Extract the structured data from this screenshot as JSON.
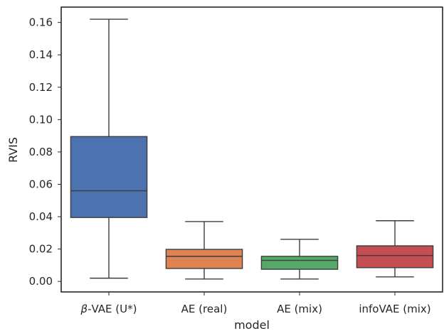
{
  "chart_data": {
    "type": "box",
    "xlabel": "model",
    "ylabel": "RVIS",
    "ylim": [
      -0.0065,
      0.1695
    ],
    "yticks": [
      "0.00",
      "0.02",
      "0.04",
      "0.06",
      "0.08",
      "0.10",
      "0.12",
      "0.14",
      "0.16"
    ],
    "grid": false,
    "series": [
      {
        "label_prefix": "β",
        "label": "-VAE (U*)",
        "color": "#4c72b0",
        "whisker_low": 0.002,
        "q1": 0.0395,
        "median": 0.056,
        "q3": 0.0895,
        "whisker_high": 0.162
      },
      {
        "label_prefix": "",
        "label": "AE (real)",
        "color": "#dd8452",
        "whisker_low": 0.0015,
        "q1": 0.008,
        "median": 0.0155,
        "q3": 0.0198,
        "whisker_high": 0.037
      },
      {
        "label_prefix": "",
        "label": "AE (mix)",
        "color": "#55a868",
        "whisker_low": 0.0015,
        "q1": 0.0075,
        "median": 0.013,
        "q3": 0.0155,
        "whisker_high": 0.026
      },
      {
        "label_prefix": "",
        "label": "infoVAE (mix)",
        "color": "#c44e52",
        "whisker_low": 0.0028,
        "q1": 0.0085,
        "median": 0.016,
        "q3": 0.022,
        "whisker_high": 0.0375
      }
    ]
  }
}
